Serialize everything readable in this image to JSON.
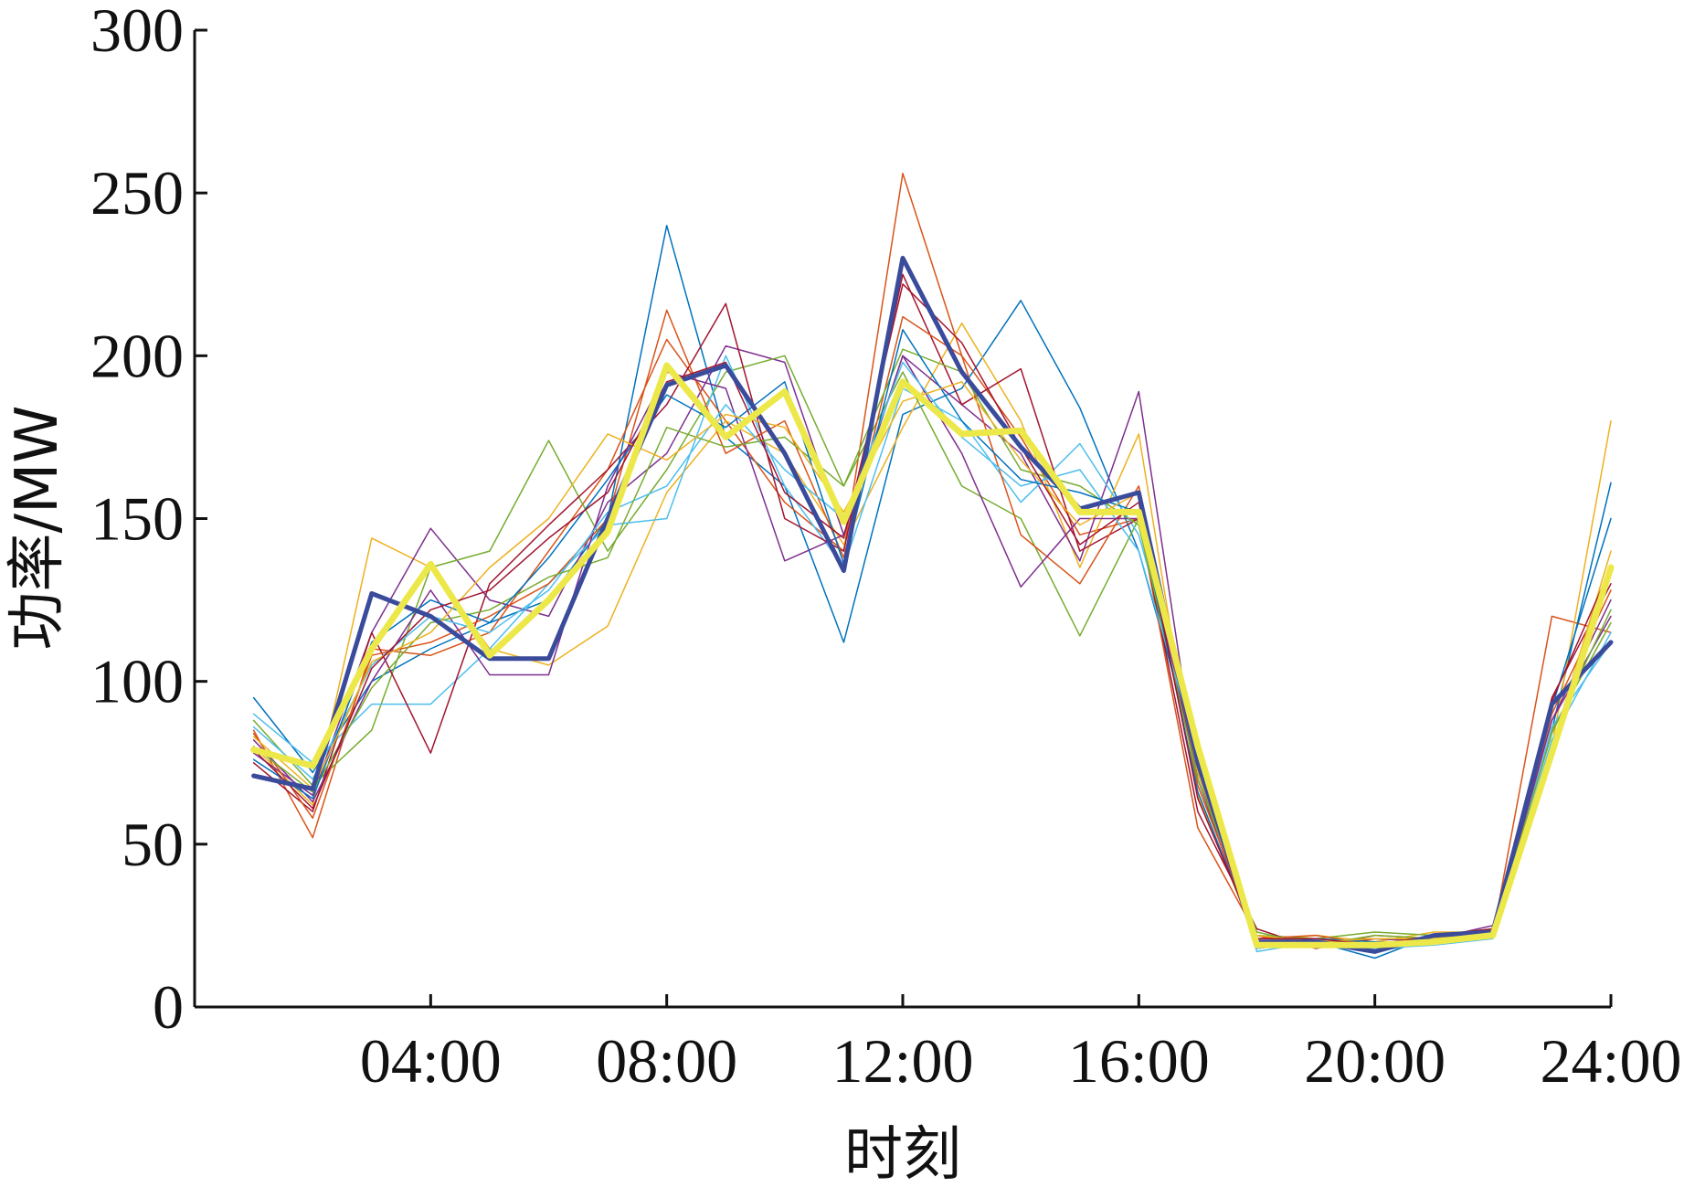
{
  "chart_data": {
    "type": "line",
    "xlabel": "时刻",
    "ylabel": "功率/MW",
    "ylim": [
      0,
      300
    ],
    "yticks": [
      0,
      50,
      100,
      150,
      200,
      250,
      300
    ],
    "xlim": [
      0,
      24
    ],
    "xticks": [
      {
        "value": 4,
        "label": "04:00"
      },
      {
        "value": 8,
        "label": "08:00"
      },
      {
        "value": 12,
        "label": "12:00"
      },
      {
        "value": 16,
        "label": "16:00"
      },
      {
        "value": 20,
        "label": "20:00"
      },
      {
        "value": 24,
        "label": "24:00"
      }
    ],
    "grid": false,
    "x": [
      1,
      2,
      3,
      4,
      5,
      6,
      7,
      8,
      9,
      10,
      11,
      12,
      13,
      14,
      15,
      16,
      17,
      18,
      19,
      20,
      21,
      22,
      23,
      24
    ],
    "series": [
      {
        "color": "#0072bd",
        "width": 1.5,
        "values": [
          95,
          72,
          100,
          110,
          118,
          125,
          150,
          240,
          175,
          160,
          112,
          182,
          190,
          217,
          184,
          140,
          75,
          18,
          20,
          15,
          22,
          24,
          85,
          161
        ]
      },
      {
        "color": "#d95319",
        "width": 1.5,
        "values": [
          85,
          52,
          110,
          108,
          115,
          140,
          165,
          205,
          180,
          155,
          140,
          256,
          200,
          175,
          145,
          150,
          55,
          22,
          18,
          22,
          21,
          22,
          120,
          115
        ]
      },
      {
        "color": "#edb120",
        "width": 1.5,
        "values": [
          80,
          62,
          144,
          135,
          110,
          105,
          117,
          158,
          180,
          170,
          142,
          178,
          210,
          180,
          135,
          176,
          65,
          20,
          22,
          20,
          23,
          23,
          80,
          180
        ]
      },
      {
        "color": "#7e2f8e",
        "width": 1.5,
        "values": [
          78,
          65,
          115,
          147,
          125,
          120,
          155,
          170,
          203,
          198,
          145,
          200,
          185,
          170,
          137,
          189,
          70,
          18,
          20,
          18,
          21,
          25,
          88,
          125
        ]
      },
      {
        "color": "#77ac30",
        "width": 1.5,
        "values": [
          88,
          68,
          85,
          135,
          140,
          174,
          140,
          165,
          195,
          200,
          160,
          195,
          160,
          150,
          114,
          150,
          70,
          22,
          21,
          23,
          22,
          24,
          85,
          118
        ]
      },
      {
        "color": "#4dbeee",
        "width": 1.5,
        "values": [
          90,
          75,
          93,
          93,
          110,
          130,
          148,
          150,
          200,
          160,
          135,
          190,
          180,
          155,
          173,
          145,
          80,
          17,
          20,
          18,
          19,
          21,
          86,
          112
        ]
      },
      {
        "color": "#a2142f",
        "width": 1.5,
        "values": [
          75,
          60,
          115,
          78,
          130,
          148,
          165,
          185,
          216,
          150,
          140,
          225,
          185,
          196,
          140,
          150,
          60,
          24,
          18,
          21,
          20,
          22,
          95,
          130
        ]
      },
      {
        "color": "#d95319",
        "width": 1.5,
        "values": [
          84,
          58,
          108,
          112,
          120,
          130,
          150,
          214,
          170,
          180,
          138,
          212,
          200,
          145,
          130,
          160,
          68,
          21,
          22,
          19,
          22,
          23,
          90,
          128
        ]
      },
      {
        "color": "#7e2f8e",
        "width": 1.5,
        "values": [
          82,
          63,
          100,
          128,
          102,
          102,
          160,
          195,
          190,
          137,
          145,
          200,
          170,
          129,
          150,
          150,
          72,
          19,
          20,
          21,
          20,
          22,
          88,
          120
        ]
      },
      {
        "color": "#4dbeee",
        "width": 1.5,
        "values": [
          86,
          70,
          105,
          120,
          115,
          128,
          152,
          160,
          185,
          165,
          150,
          198,
          175,
          160,
          165,
          140,
          78,
          18,
          21,
          17,
          20,
          22,
          82,
          115
        ]
      },
      {
        "color": "#77ac30",
        "width": 1.5,
        "values": [
          80,
          66,
          98,
          118,
          122,
          132,
          138,
          178,
          172,
          175,
          160,
          202,
          195,
          165,
          160,
          148,
          70,
          23,
          19,
          22,
          21,
          23,
          84,
          122
        ]
      },
      {
        "color": "#0072bd",
        "width": 1.5,
        "values": [
          76,
          64,
          112,
          125,
          118,
          138,
          162,
          188,
          178,
          192,
          136,
          208,
          180,
          162,
          158,
          152,
          66,
          20,
          21,
          20,
          20,
          22,
          92,
          150
        ]
      },
      {
        "color": "#edb120",
        "width": 1.5,
        "values": [
          83,
          67,
          106,
          115,
          135,
          150,
          176,
          168,
          182,
          178,
          152,
          186,
          192,
          168,
          148,
          158,
          72,
          22,
          20,
          21,
          21,
          23,
          80,
          140
        ]
      },
      {
        "color": "#a2142f",
        "width": 1.5,
        "values": [
          79,
          61,
          104,
          122,
          128,
          144,
          158,
          192,
          198,
          158,
          144,
          222,
          204,
          172,
          142,
          155,
          64,
          21,
          21,
          19,
          22,
          24,
          94,
          135
        ]
      },
      {
        "color": "#3a4b9c",
        "width": 5,
        "values": [
          71,
          67,
          127,
          120,
          107,
          107,
          150,
          191,
          197,
          170,
          134,
          230,
          195,
          172,
          153,
          158,
          75,
          20,
          20,
          17,
          22,
          23,
          93,
          112
        ]
      },
      {
        "color": "#ede84a",
        "width": 7,
        "values": [
          79,
          74,
          110,
          136,
          108,
          125,
          146,
          197,
          175,
          189,
          149,
          192,
          176,
          177,
          152,
          152,
          80,
          19,
          19,
          19,
          20,
          22,
          78,
          135
        ]
      }
    ]
  }
}
